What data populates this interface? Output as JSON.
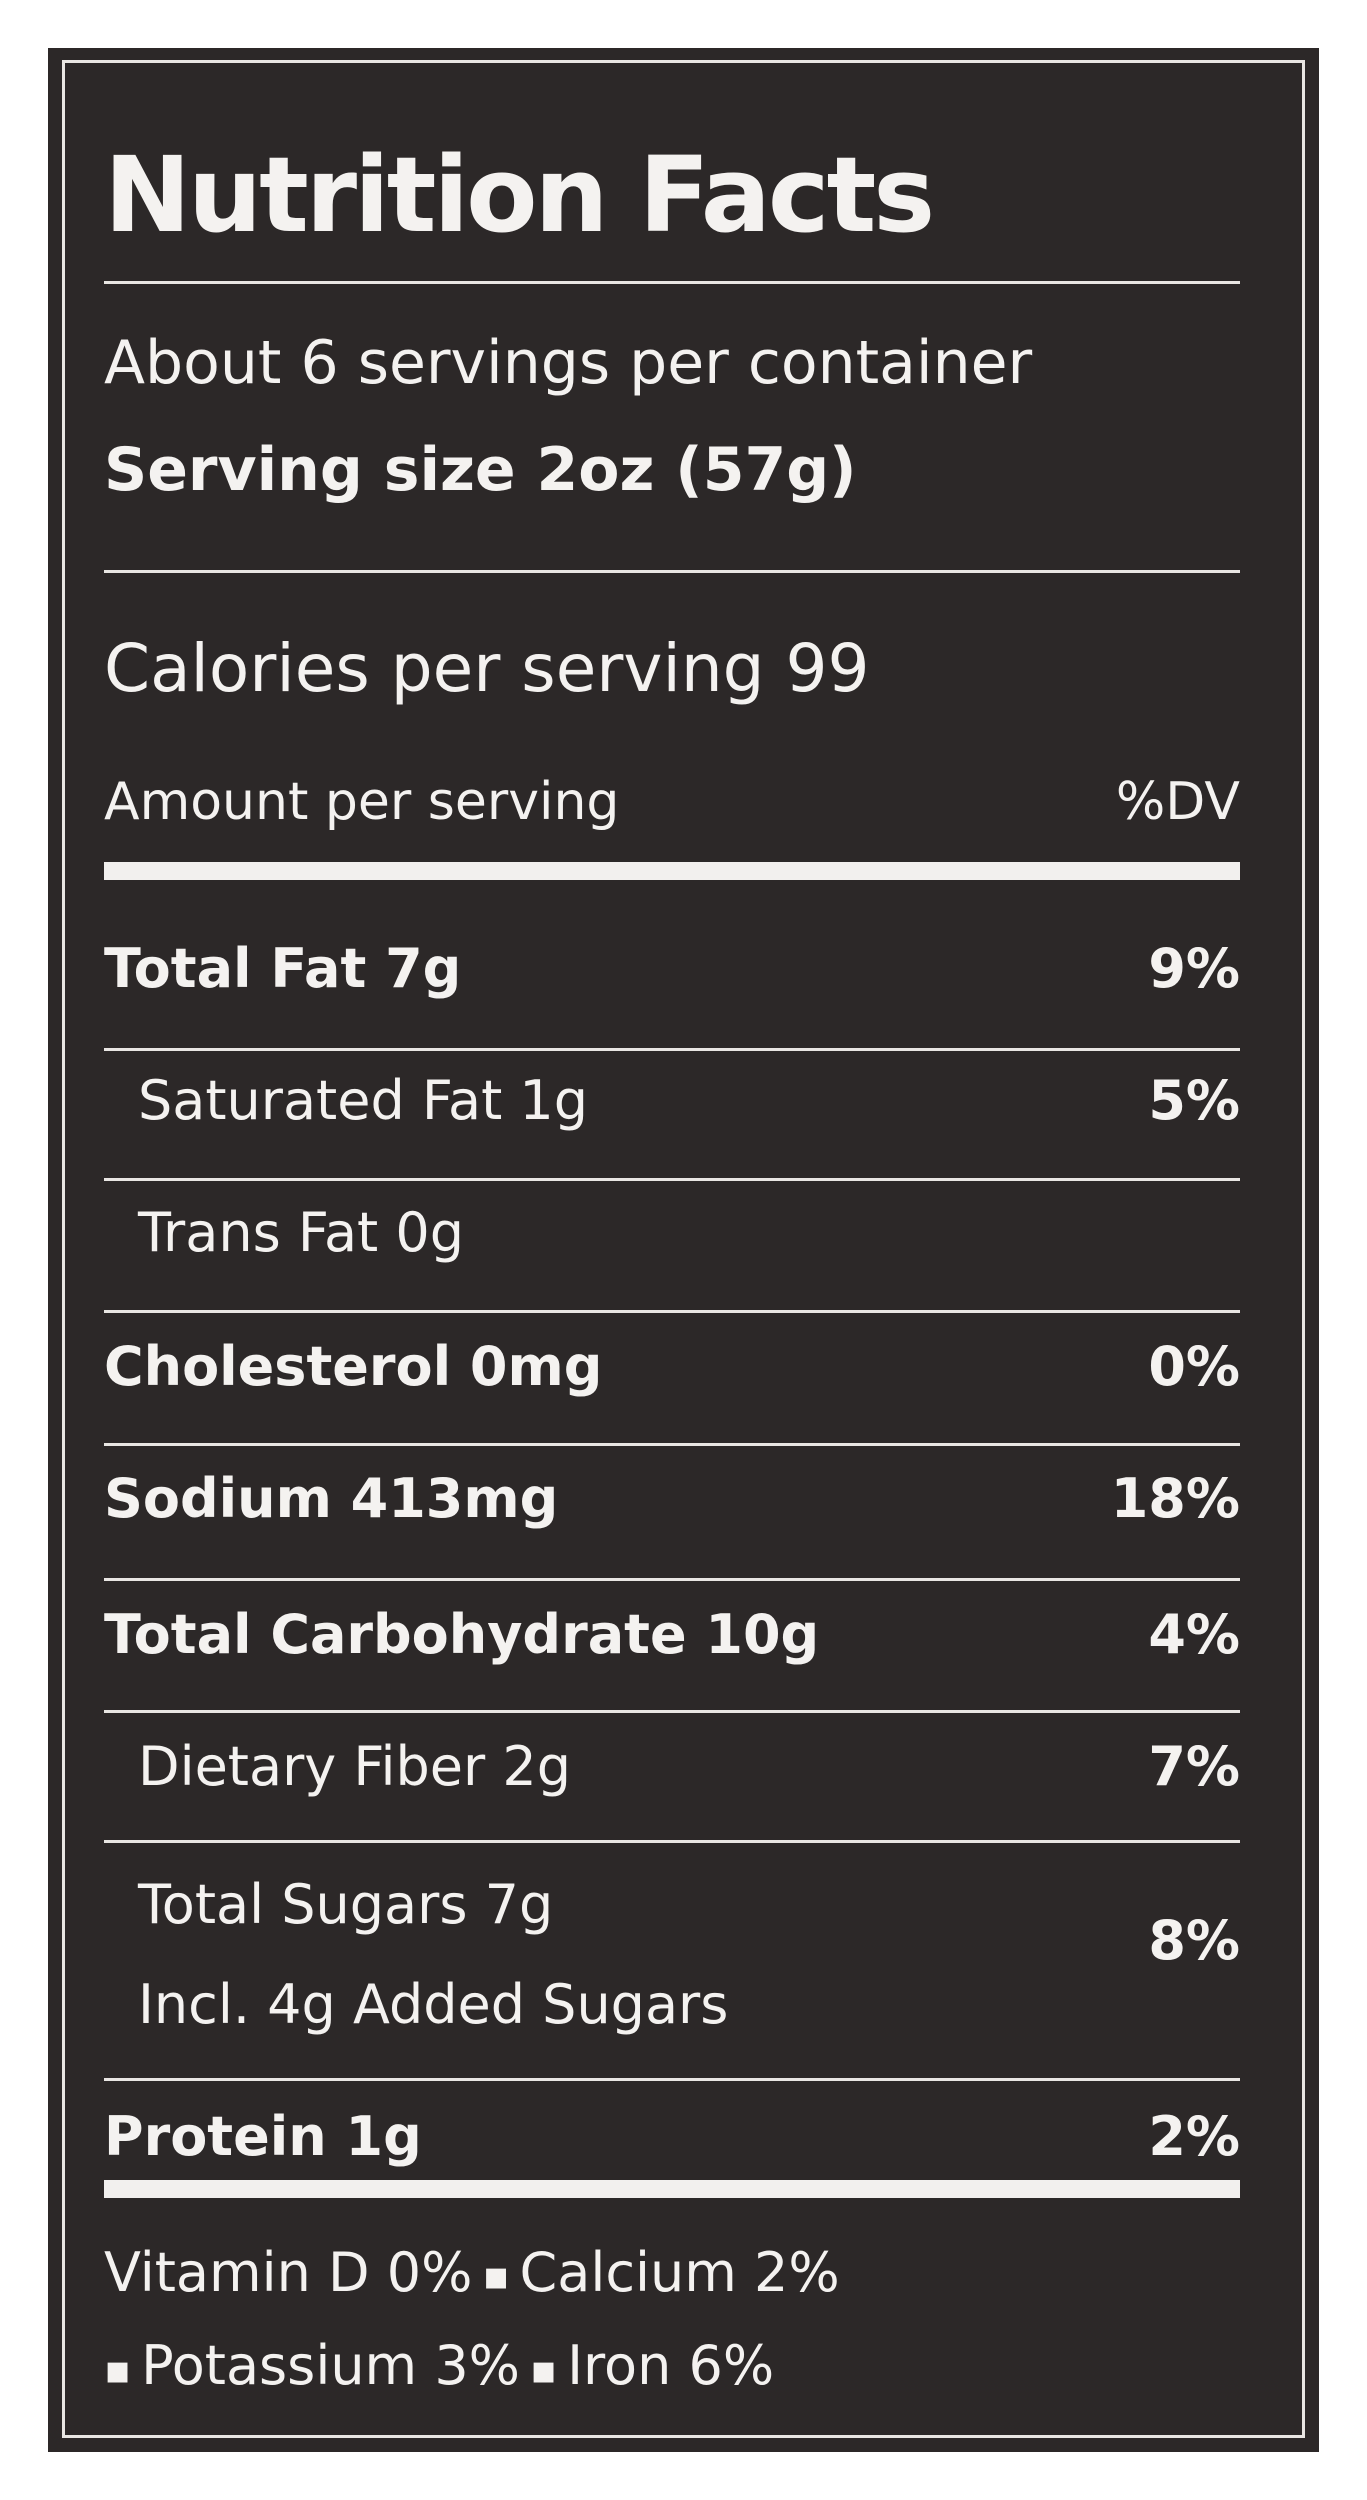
{
  "title": "Nutrition Facts",
  "servings_per_container": "About 6 servings per container",
  "serving_size": "Serving size 2oz (57g)",
  "calories": "Calories per serving 99",
  "amount_per_serving": "Amount per serving",
  "dv_header": "%DV",
  "nutrients": [
    {
      "name": "Total Fat 7g",
      "dv": "9%"
    },
    {
      "name": "Saturated Fat 1g",
      "dv": "5%"
    },
    {
      "name": "Trans Fat 0g",
      "dv": ""
    },
    {
      "name": "Cholesterol 0mg",
      "dv": "0%"
    },
    {
      "name": "Sodium 413mg",
      "dv": "18%"
    },
    {
      "name": "Total Carbohydrate 10g",
      "dv": "4%"
    },
    {
      "name": "Dietary Fiber 2g",
      "dv": "7%"
    },
    {
      "name": "Total Sugars 7g",
      "sub": "Incl. 4g Added Sugars",
      "dv": "8%"
    },
    {
      "name": "Protein 1g",
      "dv": "2%"
    }
  ],
  "vitamins": {
    "vitamin_d": "Vitamin D 0%",
    "calcium": "Calcium 2%",
    "potassium": "Potassium 3%",
    "iron": "Iron 6%",
    "separator": "▪"
  }
}
